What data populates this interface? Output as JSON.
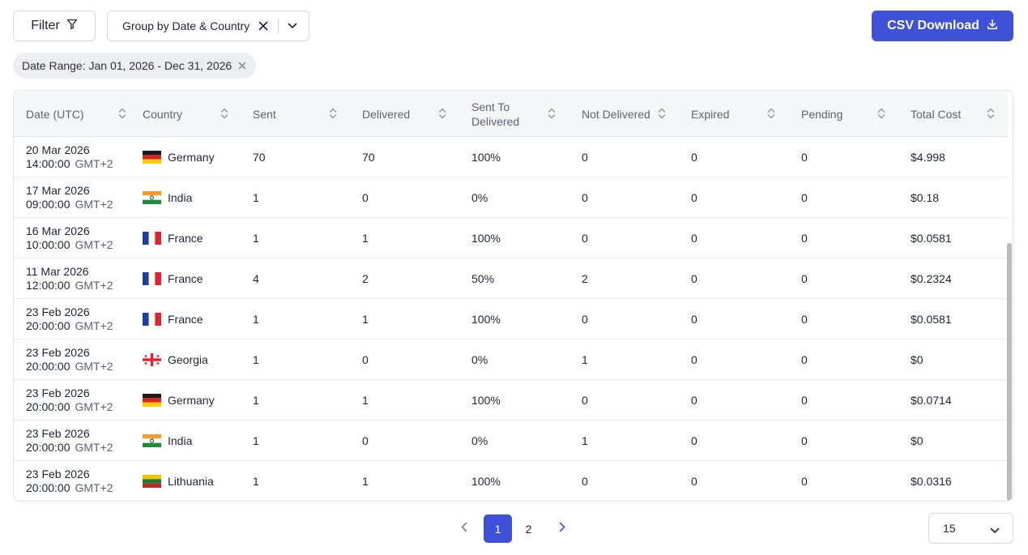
{
  "toolbar": {
    "filter_label": "Filter",
    "group_label": "Group by Date & Country",
    "csv_label": "CSV Download",
    "accent_color": "#3f51d9"
  },
  "active_filter": {
    "label": "Date Range: Jan 01, 2026 - Dec 31, 2026"
  },
  "table": {
    "columns": [
      "Date (UTC)",
      "Country",
      "Sent",
      "Delivered",
      "Sent To Delivered",
      "Not Delivered",
      "Expired",
      "Pending",
      "Total Cost"
    ],
    "rows": [
      {
        "date": "20 Mar 2026",
        "time": "14:00:00",
        "tz": "GMT+2",
        "flag": "germany",
        "country": "Germany",
        "sent": "70",
        "delivered": "70",
        "ratio": "100%",
        "not_delivered": "0",
        "expired": "0",
        "pending": "0",
        "cost": "$4.998"
      },
      {
        "date": "17 Mar 2026",
        "time": "09:00:00",
        "tz": "GMT+2",
        "flag": "india",
        "country": "India",
        "sent": "1",
        "delivered": "0",
        "ratio": "0%",
        "not_delivered": "0",
        "expired": "0",
        "pending": "0",
        "cost": "$0.18"
      },
      {
        "date": "16 Mar 2026",
        "time": "10:00:00",
        "tz": "GMT+2",
        "flag": "france",
        "country": "France",
        "sent": "1",
        "delivered": "1",
        "ratio": "100%",
        "not_delivered": "0",
        "expired": "0",
        "pending": "0",
        "cost": "$0.0581"
      },
      {
        "date": "11 Mar 2026",
        "time": "12:00:00",
        "tz": "GMT+2",
        "flag": "france",
        "country": "France",
        "sent": "4",
        "delivered": "2",
        "ratio": "50%",
        "not_delivered": "2",
        "expired": "0",
        "pending": "0",
        "cost": "$0.2324"
      },
      {
        "date": "23 Feb 2026",
        "time": "20:00:00",
        "tz": "GMT+2",
        "flag": "france",
        "country": "France",
        "sent": "1",
        "delivered": "1",
        "ratio": "100%",
        "not_delivered": "0",
        "expired": "0",
        "pending": "0",
        "cost": "$0.0581"
      },
      {
        "date": "23 Feb 2026",
        "time": "20:00:00",
        "tz": "GMT+2",
        "flag": "georgia",
        "country": "Georgia",
        "sent": "1",
        "delivered": "0",
        "ratio": "0%",
        "not_delivered": "1",
        "expired": "0",
        "pending": "0",
        "cost": "$0"
      },
      {
        "date": "23 Feb 2026",
        "time": "20:00:00",
        "tz": "GMT+2",
        "flag": "germany",
        "country": "Germany",
        "sent": "1",
        "delivered": "1",
        "ratio": "100%",
        "not_delivered": "0",
        "expired": "0",
        "pending": "0",
        "cost": "$0.0714"
      },
      {
        "date": "23 Feb 2026",
        "time": "20:00:00",
        "tz": "GMT+2",
        "flag": "india",
        "country": "India",
        "sent": "1",
        "delivered": "0",
        "ratio": "0%",
        "not_delivered": "1",
        "expired": "0",
        "pending": "0",
        "cost": "$0"
      },
      {
        "date": "23 Feb 2026",
        "time": "20:00:00",
        "tz": "GMT+2",
        "flag": "lithuania",
        "country": "Lithuania",
        "sent": "1",
        "delivered": "1",
        "ratio": "100%",
        "not_delivered": "0",
        "expired": "0",
        "pending": "0",
        "cost": "$0.0316"
      }
    ]
  },
  "pagination": {
    "pages": [
      "1",
      "2"
    ],
    "current_page": "1",
    "per_page": "15"
  }
}
